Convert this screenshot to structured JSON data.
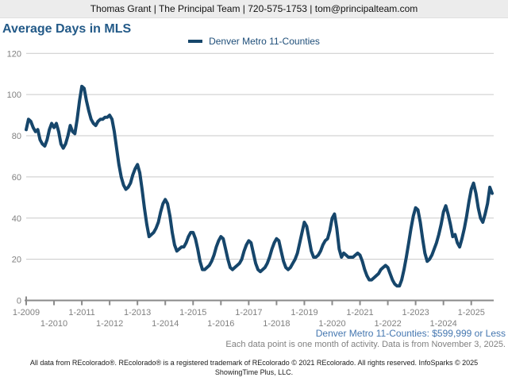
{
  "header": {
    "contact_line": "Thomas Grant | The Principal Team | 720-575-1753 | tom@principalteam.com"
  },
  "title": "Average Days in MLS",
  "legend": {
    "series_label": "Denver Metro 11-Counties"
  },
  "annotations": {
    "filter_label": "Denver Metro 11-Counties: $599,999 or Less",
    "note": "Each data point is one month of activity. Data is from November 3, 2025.",
    "footer_line1": "All data from REcolorado®. REcolorado® is a registered trademark of REcolorado © 2021 REcolorado. All rights reserved. InfoSparks © 2025",
    "footer_line2": "ShowingTime Plus, LLC."
  },
  "colors": {
    "line": "#16466B",
    "title_text": "#235A88",
    "legend_text": "#1E4E79",
    "filter_text": "#4577B0",
    "axis_text": "#808080",
    "gridline": "#c9c9c9",
    "axis_line": "#8a8a8a",
    "header_bg": "#ececec",
    "note_text": "#808080",
    "footer_text": "#1a1a1a"
  },
  "chart_data": {
    "type": "line",
    "title": "Average Days in MLS",
    "ylabel": "",
    "xlabel": "",
    "ylim": [
      0,
      120
    ],
    "y_ticks": [
      0,
      20,
      40,
      60,
      80,
      100,
      120
    ],
    "grid": "horizontal",
    "legend_position": "top-center",
    "x_tick_labels": [
      "1-2009",
      "1-2010",
      "1-2011",
      "1-2012",
      "1-2013",
      "1-2014",
      "1-2015",
      "1-2016",
      "1-2017",
      "1-2018",
      "1-2019",
      "1-2020",
      "1-2021",
      "1-2022",
      "1-2023",
      "1-2024",
      "1-2025"
    ],
    "series": [
      {
        "name": "Denver Metro 11-Counties",
        "start_month": "2009-01",
        "end_month": "2025-10",
        "frequency": "monthly",
        "values": [
          83,
          88,
          87,
          84,
          82,
          83,
          78,
          76,
          75,
          78,
          83,
          86,
          84,
          86,
          82,
          76,
          74,
          76,
          80,
          85,
          82,
          81,
          88,
          97,
          104,
          103,
          97,
          92,
          88,
          86,
          85,
          87,
          88,
          88,
          89,
          89,
          90,
          88,
          82,
          74,
          66,
          60,
          56,
          54,
          55,
          57,
          61,
          64,
          66,
          62,
          54,
          45,
          37,
          31,
          32,
          33,
          35,
          38,
          43,
          47,
          49,
          47,
          41,
          33,
          27,
          24,
          25,
          26,
          26,
          28,
          31,
          33,
          33,
          30,
          25,
          19,
          15,
          15,
          16,
          17,
          19,
          22,
          26,
          29,
          31,
          30,
          25,
          20,
          16,
          15,
          16,
          17,
          18,
          20,
          24,
          27,
          29,
          28,
          23,
          18,
          15,
          14,
          15,
          16,
          18,
          21,
          25,
          28,
          30,
          29,
          24,
          19,
          16,
          15,
          16,
          18,
          20,
          23,
          28,
          33,
          38,
          36,
          30,
          24,
          21,
          21,
          22,
          24,
          27,
          29,
          30,
          34,
          40,
          42,
          35,
          25,
          21,
          23,
          22,
          21,
          21,
          21,
          22,
          23,
          22,
          19,
          15,
          12,
          10,
          10,
          11,
          12,
          13,
          15,
          16,
          17,
          16,
          13,
          10,
          8,
          7,
          7,
          10,
          15,
          21,
          28,
          35,
          41,
          45,
          44,
          38,
          30,
          23,
          19,
          20,
          22,
          25,
          28,
          32,
          37,
          43,
          46,
          42,
          37,
          31,
          32,
          28,
          26,
          30,
          35,
          41,
          48,
          54,
          57,
          52,
          45,
          40,
          38,
          42,
          47,
          55,
          52
        ]
      }
    ]
  }
}
